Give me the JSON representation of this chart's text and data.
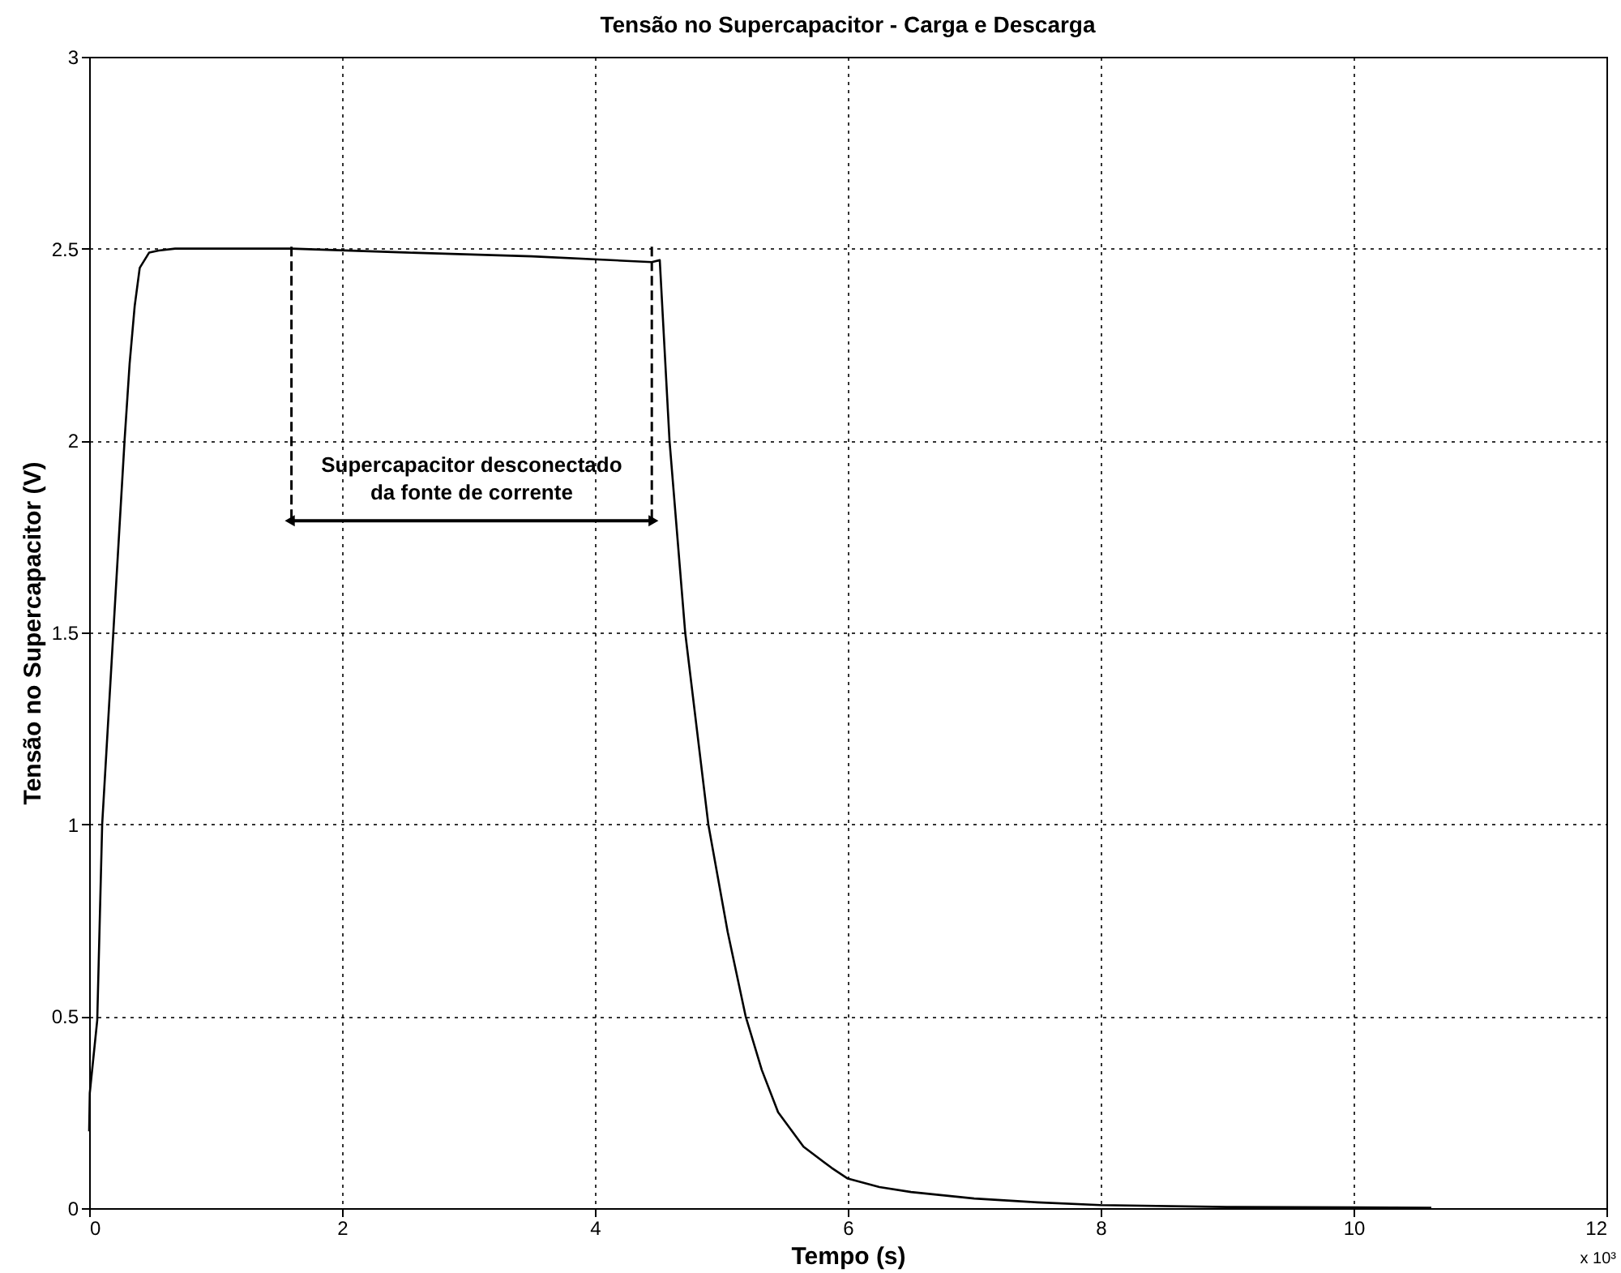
{
  "chart_data": {
    "type": "line",
    "title": "Tensão no Supercapacitor - Carga e Descarga",
    "xlabel": "Tempo (s)",
    "ylabel": "Tensão no Supercapacitor (V)",
    "x": [
      0,
      0.005,
      0.064,
      0.103,
      0.2,
      0.28,
      0.32,
      0.36,
      0.4,
      0.475,
      0.55,
      0.68,
      1.0,
      1.6,
      2.5,
      3.5,
      4.45,
      4.513,
      4.59,
      4.714,
      4.897,
      5.05,
      5.192,
      5.32,
      5.449,
      5.65,
      5.872,
      6.0,
      6.25,
      6.5,
      7.0,
      7.5,
      8.0,
      9.0,
      10.0,
      10.615
    ],
    "series": [
      {
        "color": "#000000",
        "values": [
          0.2,
          0.3,
          0.49,
          1.0,
          1.55,
          2.0,
          2.2,
          2.35,
          2.45,
          2.49,
          2.495,
          2.5,
          2.5,
          2.5,
          2.49,
          2.48,
          2.465,
          2.47,
          2.0,
          1.5,
          1.0,
          0.72,
          0.5,
          0.36,
          0.25,
          0.16,
          0.105,
          0.077,
          0.055,
          0.042,
          0.025,
          0.015,
          0.008,
          0.003,
          0.002,
          0.001
        ]
      }
    ],
    "xlim": [
      0,
      12
    ],
    "ylim": [
      0,
      3
    ],
    "xticks": [
      0,
      2,
      4,
      6,
      8,
      10,
      12
    ],
    "yticks": [
      0,
      0.5,
      1,
      1.5,
      2,
      2.5,
      3
    ],
    "grid": true,
    "marker": "none",
    "line_style": "solid",
    "ref_lines": [
      {
        "axis": "x",
        "value": 1.6,
        "line_style": "dashed"
      },
      {
        "axis": "x",
        "value": 4.45,
        "line_style": "dashed"
      }
    ],
    "annotations": [
      "Supercapacitor desconectado\nda fonte de corrente",
      "x 10³"
    ]
  }
}
